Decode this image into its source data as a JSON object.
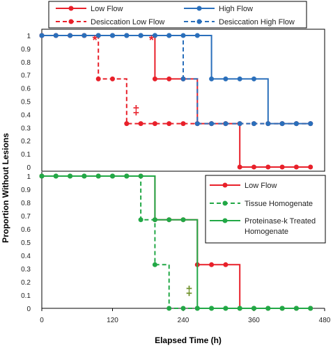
{
  "chart_data": [
    {
      "type": "line",
      "panel": "top",
      "step": true,
      "ylabel": "Proportion Without Lesions",
      "xlim": [
        0,
        480
      ],
      "ylim": [
        0,
        1
      ],
      "yticks": [
        "0",
        "0.1",
        "0.2",
        "0.3",
        "0.4",
        "0.5",
        "0.6",
        "0.7",
        "0.8",
        "0.9",
        "1"
      ],
      "legend_position": "top",
      "series": [
        {
          "name": "Low Flow",
          "color": "#e8202a",
          "dashed": false,
          "x": [
            0,
            24,
            48,
            72,
            96,
            120,
            144,
            168,
            192,
            216,
            240,
            264,
            288,
            312,
            336,
            360,
            384,
            408,
            432,
            456
          ],
          "y": [
            1,
            1,
            1,
            1,
            1,
            1,
            1,
            1,
            0.67,
            0.67,
            0.67,
            0.33,
            0.33,
            0.33,
            0,
            0,
            0,
            0,
            0,
            0
          ]
        },
        {
          "name": "High Flow",
          "color": "#2a6fbb",
          "dashed": false,
          "x": [
            0,
            24,
            48,
            72,
            96,
            120,
            144,
            168,
            192,
            216,
            240,
            264,
            288,
            312,
            336,
            360,
            384,
            408,
            432,
            456
          ],
          "y": [
            1,
            1,
            1,
            1,
            1,
            1,
            1,
            1,
            1,
            1,
            1,
            1,
            0.67,
            0.67,
            0.67,
            0.67,
            0.33,
            0.33,
            0.33,
            0.33
          ]
        },
        {
          "name": "Desiccation Low Flow",
          "color": "#e8202a",
          "dashed": true,
          "x": [
            0,
            24,
            48,
            72,
            96,
            120,
            144,
            168,
            192,
            216,
            240,
            264,
            288,
            312,
            336,
            360,
            384,
            408,
            432,
            456
          ],
          "y": [
            1,
            1,
            1,
            1,
            0.67,
            0.67,
            0.33,
            0.33,
            0.33,
            0.33,
            0.33,
            0.33,
            0.33,
            0.33,
            0.33,
            0.33,
            0.33,
            0.33,
            0.33,
            0.33
          ]
        },
        {
          "name": "Desiccation High Flow",
          "color": "#2a6fbb",
          "dashed": true,
          "x": [
            0,
            24,
            48,
            72,
            96,
            120,
            144,
            168,
            192,
            216,
            240,
            264,
            288,
            312,
            336,
            360,
            384,
            408,
            432,
            456
          ],
          "y": [
            1,
            1,
            1,
            1,
            1,
            1,
            1,
            1,
            1,
            1,
            0.67,
            0.33,
            0.33,
            0.33,
            0.33,
            0.33,
            0.33,
            0.33,
            0.33,
            0.33
          ]
        }
      ],
      "annotations": [
        {
          "text": "*",
          "x": 90,
          "y": 0.93,
          "color": "#e8202a"
        },
        {
          "text": "*",
          "x": 186,
          "y": 0.93,
          "color": "#e8202a"
        },
        {
          "text": "‡",
          "x": 160,
          "y": 0.4,
          "color": "#e8202a"
        }
      ]
    },
    {
      "type": "line",
      "panel": "bottom",
      "step": true,
      "xlabel": "Elapsed Time (h)",
      "xlim": [
        0,
        480
      ],
      "ylim": [
        0,
        1
      ],
      "xticks": [
        0,
        120,
        240,
        360,
        480
      ],
      "yticks": [
        "0",
        "0.1",
        "0.2",
        "0.3",
        "0.4",
        "0.5",
        "0.6",
        "0.7",
        "0.8",
        "0.9",
        "1"
      ],
      "legend_position": "top-right",
      "series": [
        {
          "name": "Low Flow",
          "color": "#e8202a",
          "dashed": false,
          "x": [
            0,
            24,
            48,
            72,
            96,
            120,
            144,
            168,
            192,
            216,
            240,
            264,
            288,
            312,
            336,
            360,
            384,
            408,
            432,
            456
          ],
          "y": [
            1,
            1,
            1,
            1,
            1,
            1,
            1,
            1,
            0.67,
            0.67,
            0.67,
            0.33,
            0.33,
            0.33,
            0,
            0,
            0,
            0,
            0,
            0
          ]
        },
        {
          "name": "Tissue Homogenate",
          "color": "#22a846",
          "dashed": true,
          "x": [
            0,
            24,
            48,
            72,
            96,
            120,
            144,
            168,
            192,
            216,
            240,
            264,
            288,
            312,
            336,
            360,
            384,
            408,
            432,
            456
          ],
          "y": [
            1,
            1,
            1,
            1,
            1,
            1,
            1,
            0.67,
            0.33,
            0,
            0,
            0,
            0,
            0,
            0,
            0,
            0,
            0,
            0,
            0
          ]
        },
        {
          "name": "Proteinase-k Treated Homogenate",
          "label_lines": [
            "Proteinase-k Treated",
            "Homogenate"
          ],
          "color": "#22a846",
          "dashed": false,
          "x": [
            0,
            24,
            48,
            72,
            96,
            120,
            144,
            168,
            192,
            216,
            240,
            264,
            288,
            312,
            336,
            360,
            384,
            408,
            432,
            456
          ],
          "y": [
            1,
            1,
            1,
            1,
            1,
            1,
            1,
            1,
            0.67,
            0.67,
            0.67,
            0,
            0,
            0,
            0,
            0,
            0,
            0,
            0,
            0
          ]
        }
      ],
      "annotations": [
        {
          "text": "‡",
          "x": 250,
          "y": 0.1,
          "color": "#6b8e23"
        }
      ]
    }
  ]
}
